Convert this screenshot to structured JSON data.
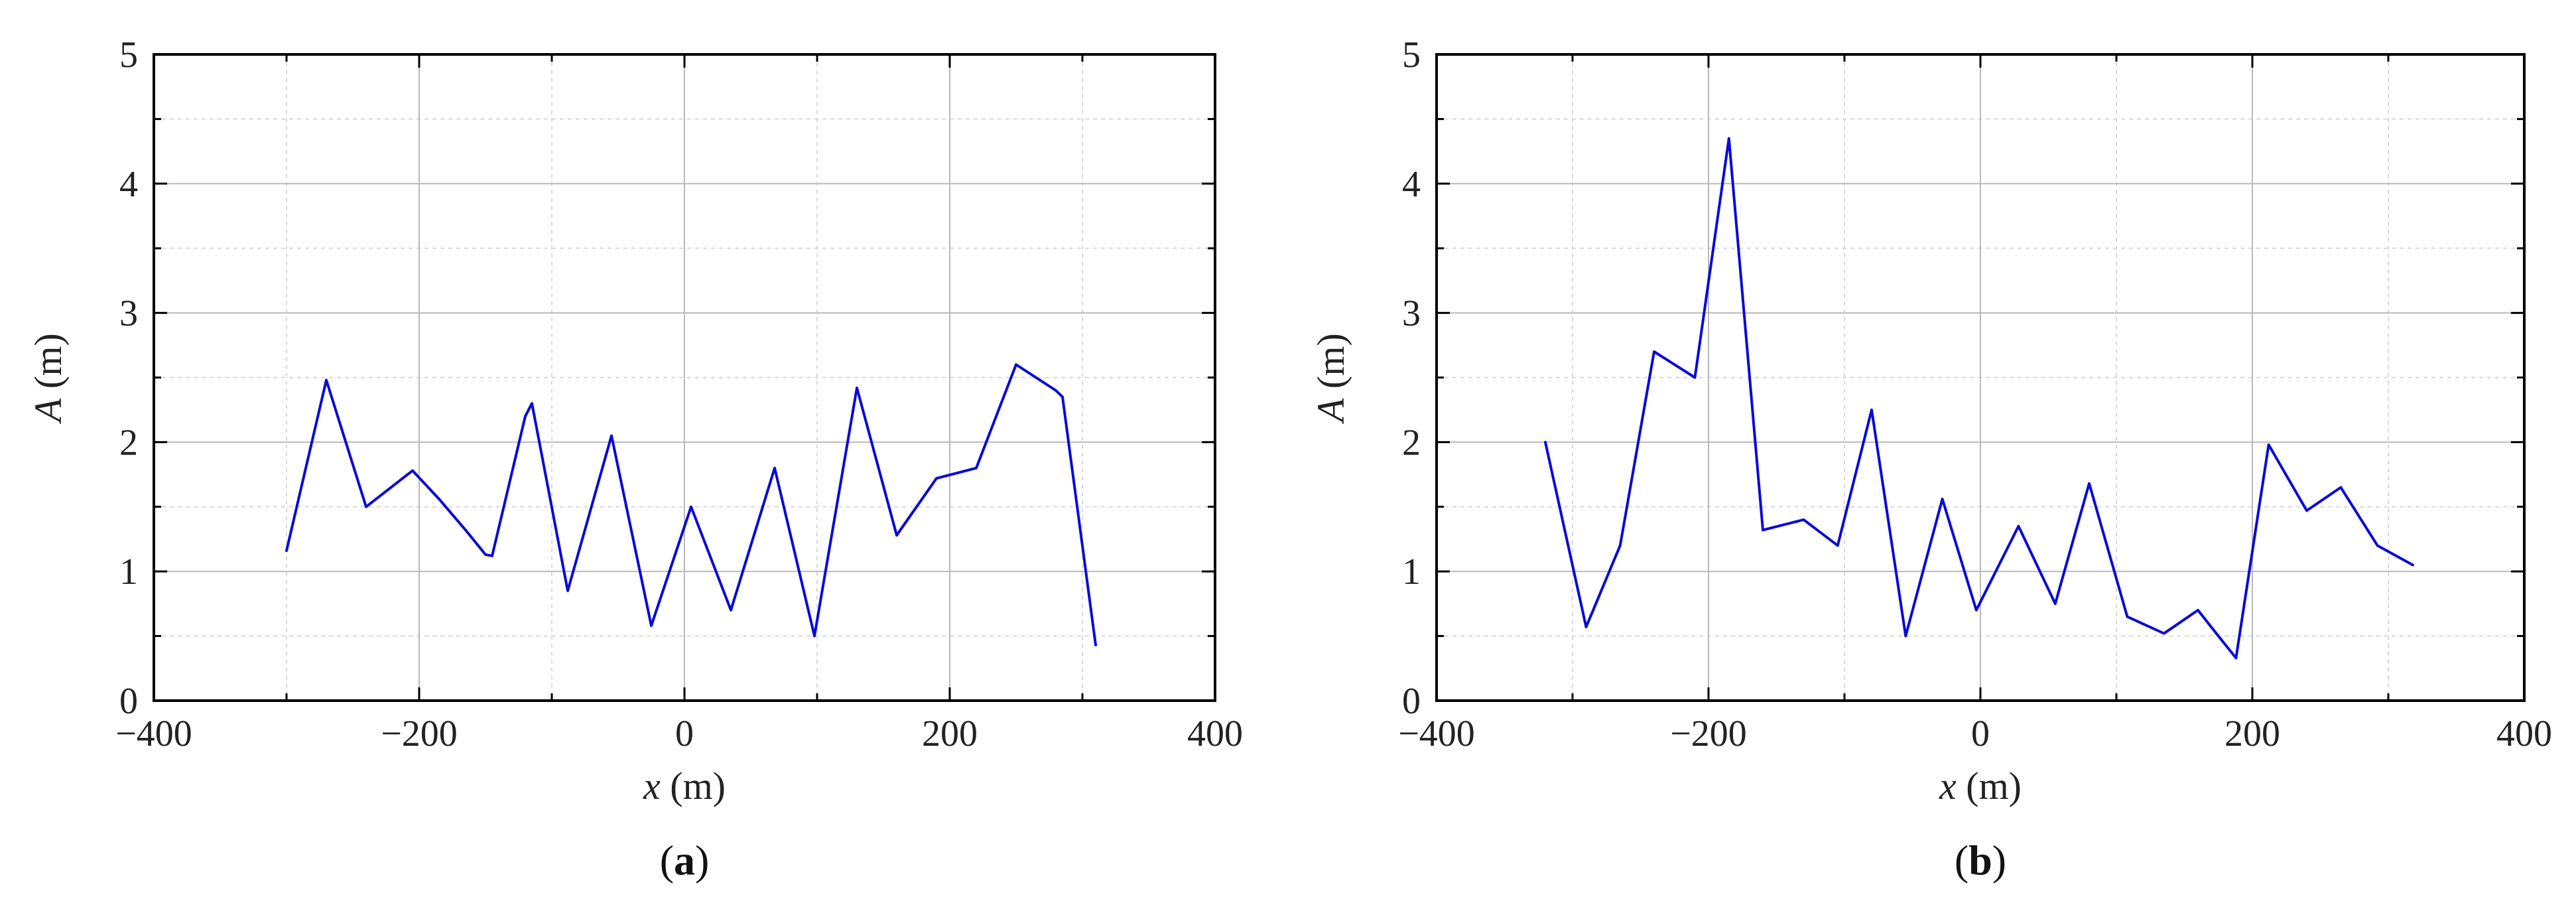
{
  "chart_data": [
    {
      "type": "line",
      "panel_label": "a",
      "xlabel_var": "x",
      "xlabel_unit": " (m)",
      "ylabel_var": "A",
      "ylabel_unit": " (m)",
      "xlim": [
        -400,
        400
      ],
      "ylim": [
        0,
        5
      ],
      "xticks": [
        -400,
        -200,
        0,
        200,
        400
      ],
      "xtick_labels": [
        "−400",
        "−200",
        "0",
        "200",
        "400"
      ],
      "yticks": [
        0,
        1,
        2,
        3,
        4,
        5
      ],
      "ytick_labels": [
        "0",
        "1",
        "2",
        "3",
        "4",
        "5"
      ],
      "grid": true,
      "series": [
        {
          "color": "#0a0ad8",
          "x": [
            -300,
            -270,
            -240,
            -205,
            -185,
            -165,
            -150,
            -145,
            -120,
            -115,
            -88,
            -55,
            -25,
            5,
            35,
            68,
            98,
            130,
            160,
            190,
            220,
            250,
            280,
            285,
            310
          ],
          "y": [
            1.16,
            2.48,
            1.5,
            1.78,
            1.56,
            1.32,
            1.13,
            1.12,
            2.2,
            2.3,
            0.85,
            2.05,
            0.58,
            1.5,
            0.7,
            1.8,
            0.5,
            2.42,
            1.28,
            1.72,
            1.8,
            2.6,
            2.4,
            2.35,
            0.43
          ]
        }
      ]
    },
    {
      "type": "line",
      "panel_label": "b",
      "xlabel_var": "x",
      "xlabel_unit": " (m)",
      "ylabel_var": "A",
      "ylabel_unit": " (m)",
      "xlim": [
        -400,
        400
      ],
      "ylim": [
        0,
        5
      ],
      "xticks": [
        -400,
        -200,
        0,
        200,
        400
      ],
      "xtick_labels": [
        "−400",
        "−200",
        "0",
        "200",
        "400"
      ],
      "yticks": [
        0,
        1,
        2,
        3,
        4,
        5
      ],
      "ytick_labels": [
        "0",
        "1",
        "2",
        "3",
        "4",
        "5"
      ],
      "grid": true,
      "series": [
        {
          "color": "#0a0ad8",
          "x": [
            -320,
            -290,
            -265,
            -240,
            -210,
            -185,
            -160,
            -130,
            -105,
            -80,
            -55,
            -28,
            -3,
            28,
            55,
            80,
            108,
            135,
            160,
            175,
            188,
            212,
            240,
            265,
            292,
            318
          ],
          "y": [
            2.0,
            0.57,
            1.2,
            2.7,
            2.5,
            4.35,
            1.32,
            1.4,
            1.2,
            2.25,
            0.5,
            1.56,
            0.7,
            1.35,
            0.75,
            1.68,
            0.65,
            0.52,
            0.7,
            0.5,
            0.33,
            1.98,
            1.47,
            1.65,
            1.2,
            1.05
          ]
        }
      ]
    }
  ]
}
